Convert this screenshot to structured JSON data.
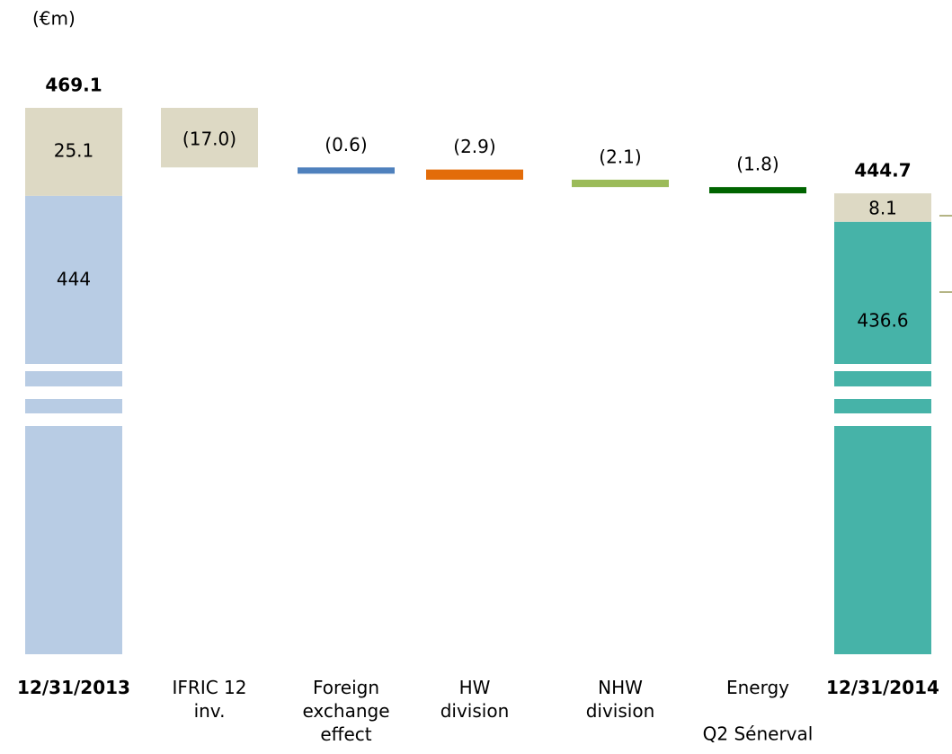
{
  "chart_data": {
    "type": "waterfall",
    "unit_label": "(€m)",
    "categories": [
      "12/31/2013",
      "IFRIC 12\ninv.",
      "Foreign\nexchange\neffect",
      "HW\ndivision",
      "NHW\ndivision",
      "Energy",
      "12/31/2014"
    ],
    "values": [
      469.1,
      -17.0,
      -0.6,
      -2.9,
      -2.1,
      -1.8,
      444.7
    ],
    "value_labels": [
      "469.1",
      "(17.0)",
      "(0.6)",
      "(2.9)",
      "(2.1)",
      "(1.8)",
      "444.7"
    ],
    "segments": [
      [
        444.0,
        25.1
      ],
      null,
      null,
      null,
      null,
      null,
      [
        436.6,
        8.1
      ]
    ],
    "colors": [
      "#b8cce4",
      "#ddd9c4",
      "#4f81bd",
      "#e36c09",
      "#9bbb59",
      "#006400",
      "#46b3a8"
    ],
    "total_top_color": "#ddd9c4",
    "note": "Q2 Sénerval"
  }
}
